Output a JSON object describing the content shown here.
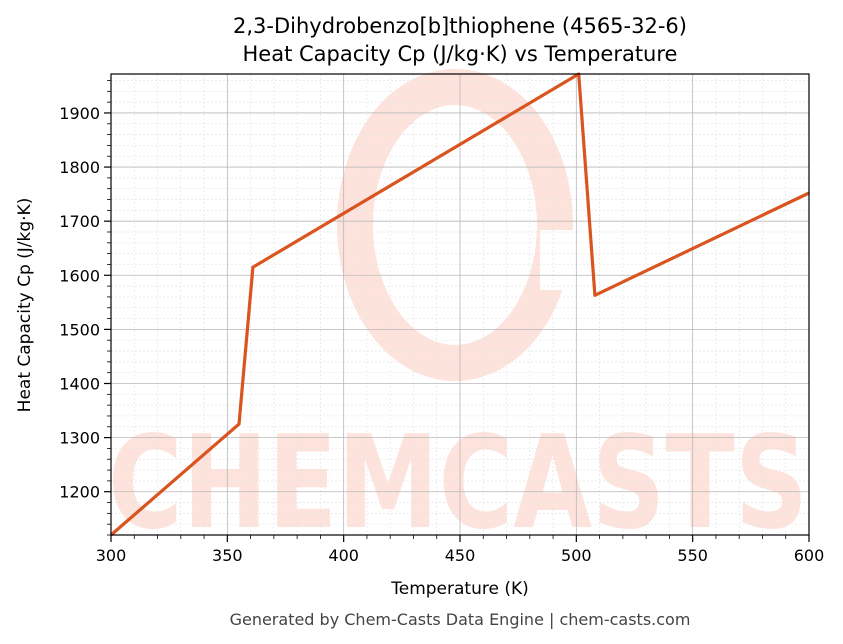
{
  "chart_data": {
    "type": "line",
    "title": "2,3-Dihydrobenzo[b]thiophene (4565-32-6)",
    "subtitle": "Heat Capacity Cp (J/kg·K) vs Temperature",
    "xlabel": "Temperature (K)",
    "ylabel": "Heat Capacity Cp (J/kg·K)",
    "xlim": [
      300,
      600
    ],
    "ylim": [
      1120,
      1972
    ],
    "x_ticks": [
      300,
      350,
      400,
      450,
      500,
      550,
      600
    ],
    "y_ticks": [
      1200,
      1300,
      1400,
      1500,
      1600,
      1700,
      1800,
      1900
    ],
    "grid": true,
    "series": [
      {
        "x": [
          300,
          355,
          361,
          501,
          508,
          600
        ],
        "y": [
          1120,
          1325,
          1615,
          1972,
          1563,
          1752
        ]
      }
    ]
  },
  "colors": {
    "line": "#d9541e",
    "watermark": "#fde3dc",
    "grid_major": "#b8b8b8",
    "grid_minor": "#e4e4e4"
  },
  "watermark": {
    "text": "CHEMCASTS"
  },
  "footer": "Generated by Chem-Casts Data Engine | chem-casts.com"
}
